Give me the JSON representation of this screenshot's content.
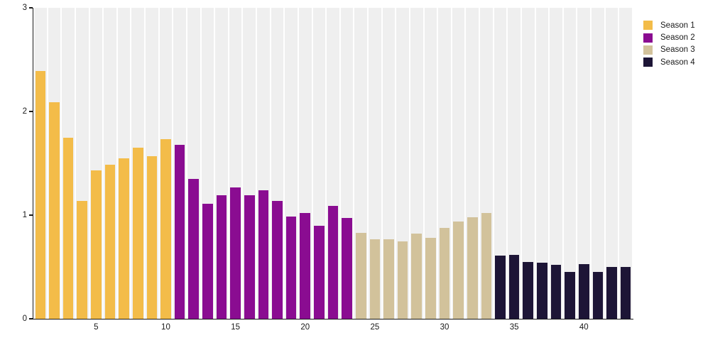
{
  "chart_data": {
    "type": "bar",
    "title": "",
    "xlabel": "",
    "ylabel": "",
    "x_unit": "episode",
    "ylim": [
      0,
      3
    ],
    "yticks": [
      "0",
      "1",
      "2",
      "3"
    ],
    "xticks": [
      5,
      10,
      15,
      20,
      25,
      30,
      35,
      40
    ],
    "n_bars": 43,
    "grid": "vertical-bands",
    "band_color": "#efefef",
    "axis_color": "#1a1a1a",
    "legend_position": "top-right",
    "series": [
      {
        "name": "Season 1",
        "color": "#f3bc49",
        "episodes": [
          1,
          2,
          3,
          4,
          5,
          6,
          7,
          8,
          9,
          10
        ],
        "values": [
          2.39,
          2.09,
          1.75,
          1.14,
          1.43,
          1.49,
          1.55,
          1.65,
          1.57,
          1.73
        ]
      },
      {
        "name": "Season 2",
        "color": "#8a0c91",
        "episodes": [
          11,
          12,
          13,
          14,
          15,
          16,
          17,
          18,
          19,
          20,
          21,
          22,
          23
        ],
        "values": [
          1.68,
          1.35,
          1.11,
          1.19,
          1.27,
          1.19,
          1.24,
          1.14,
          0.99,
          1.02,
          0.9,
          1.09,
          0.97
        ]
      },
      {
        "name": "Season 3",
        "color": "#d2c29b",
        "episodes": [
          24,
          25,
          26,
          27,
          28,
          29,
          30,
          31,
          32,
          33
        ],
        "values": [
          0.83,
          0.77,
          0.77,
          0.75,
          0.82,
          0.78,
          0.88,
          0.94,
          0.98,
          1.02
        ]
      },
      {
        "name": "Season 4",
        "color": "#1d1536",
        "episodes": [
          34,
          35,
          36,
          37,
          38,
          39,
          40,
          41,
          42,
          43
        ],
        "values": [
          0.61,
          0.62,
          0.55,
          0.54,
          0.52,
          0.45,
          0.53,
          0.45,
          0.5,
          0.5
        ]
      }
    ]
  }
}
